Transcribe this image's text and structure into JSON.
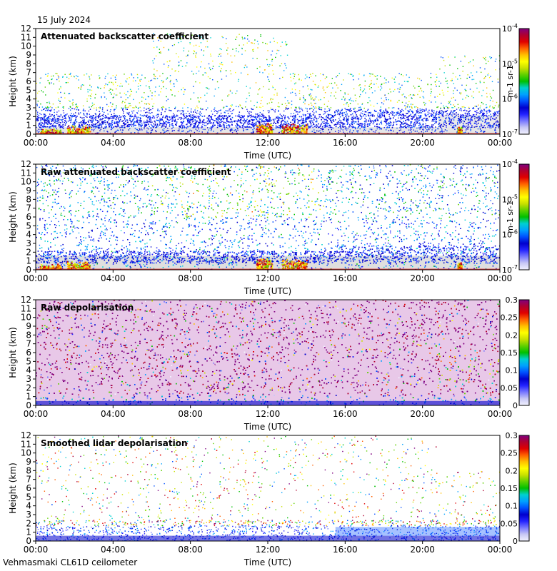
{
  "header": {
    "date": "15 July 2024"
  },
  "footer": {
    "site": "Vehmasmaki CL61D ceilometer"
  },
  "colors": {
    "background_white": "#ffffff",
    "no_signal_grey": "#dcdcdc",
    "colormap": [
      "#f2f2ff",
      "#c8c8f5",
      "#7878ff",
      "#2323ff",
      "#0000cd",
      "#0050ff",
      "#00a0ff",
      "#00d0d0",
      "#00c000",
      "#60d000",
      "#c8e000",
      "#ffff00",
      "#ffc000",
      "#ff6000",
      "#e00000",
      "#b00030",
      "#800080"
    ]
  },
  "chart_data": [
    {
      "type": "heatmap",
      "title": "Attenuated backscatter coefficient",
      "xlabel": "Time (UTC)",
      "ylabel": "Height (km)",
      "x_ticks": [
        "00:00",
        "04:00",
        "08:00",
        "12:00",
        "16:00",
        "20:00",
        "00:00"
      ],
      "y_ticks": [
        "0",
        "1",
        "2",
        "3",
        "4",
        "5",
        "6",
        "7",
        "8",
        "9",
        "10",
        "11",
        "12"
      ],
      "ylim": [
        0,
        12
      ],
      "colorbar": {
        "scale": "log",
        "range": [
          1e-07,
          0.0001
        ],
        "ticks": [
          "10-7",
          "10-6",
          "10-5",
          "10-4"
        ],
        "label": "m-1 sr-1"
      },
      "pattern": "screened"
    },
    {
      "type": "heatmap",
      "title": "Raw attenuated backscatter coefficient",
      "xlabel": "Time (UTC)",
      "ylabel": "Height (km)",
      "x_ticks": [
        "00:00",
        "04:00",
        "08:00",
        "12:00",
        "16:00",
        "20:00",
        "00:00"
      ],
      "y_ticks": [
        "0",
        "1",
        "2",
        "3",
        "4",
        "5",
        "6",
        "7",
        "8",
        "9",
        "10",
        "11",
        "12"
      ],
      "ylim": [
        0,
        12
      ],
      "colorbar": {
        "scale": "log",
        "range": [
          1e-07,
          0.0001
        ],
        "ticks": [
          "10-7",
          "10-6",
          "10-5",
          "10-4"
        ],
        "label": "m-1 sr-1"
      },
      "pattern": "raw"
    },
    {
      "type": "heatmap",
      "title": "Raw depolarisation",
      "xlabel": "Time (UTC)",
      "ylabel": "Height (km)",
      "x_ticks": [
        "00:00",
        "04:00",
        "08:00",
        "12:00",
        "16:00",
        "20:00",
        "00:00"
      ],
      "y_ticks": [
        "0",
        "1",
        "2",
        "3",
        "4",
        "5",
        "6",
        "7",
        "8",
        "9",
        "10",
        "11",
        "12"
      ],
      "ylim": [
        0,
        12
      ],
      "colorbar": {
        "scale": "linear",
        "range": [
          0,
          0.3
        ],
        "ticks": [
          "0",
          "0.05",
          "0.1",
          "0.15",
          "0.2",
          "0.25",
          "0.3"
        ],
        "label": ""
      },
      "pattern": "depol_raw"
    },
    {
      "type": "heatmap",
      "title": "Smoothed lidar depolarisation",
      "xlabel": "Time (UTC)",
      "ylabel": "Height (km)",
      "x_ticks": [
        "00:00",
        "04:00",
        "08:00",
        "12:00",
        "16:00",
        "20:00",
        "00:00"
      ],
      "y_ticks": [
        "0",
        "1",
        "2",
        "3",
        "4",
        "5",
        "6",
        "7",
        "8",
        "9",
        "10",
        "11",
        "12"
      ],
      "ylim": [
        0,
        12
      ],
      "colorbar": {
        "scale": "linear",
        "range": [
          0,
          0.3
        ],
        "ticks": [
          "0",
          "0.05",
          "0.1",
          "0.15",
          "0.2",
          "0.25",
          "0.3"
        ],
        "label": ""
      },
      "pattern": "depol_smooth"
    }
  ]
}
